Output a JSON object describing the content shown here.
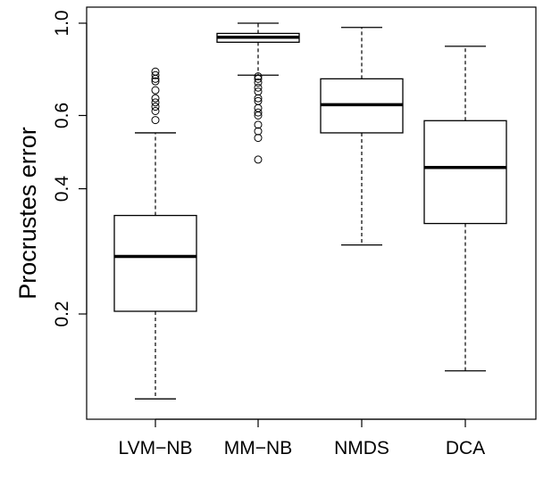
{
  "chart_data": {
    "type": "boxplot",
    "title": "",
    "xlabel": "",
    "ylabel": "Procrustes error",
    "y_scale": "log",
    "ylim": [
      0.12,
      1.05
    ],
    "yticks": [
      {
        "value": 0.2,
        "label": "0.2"
      },
      {
        "value": 0.4,
        "label": "0.4"
      },
      {
        "value": 0.6,
        "label": "0.6"
      },
      {
        "value": 1.0,
        "label": "1.0"
      }
    ],
    "grid": false,
    "categories": [
      "LVM−NB",
      "MM−NB",
      "NMDS",
      "DCA"
    ],
    "boxes": [
      {
        "name": "LVM−NB",
        "whisker_low": 0.125,
        "q1": 0.203,
        "median": 0.275,
        "q3": 0.345,
        "whisker_high": 0.545,
        "outliers": [
          0.585,
          0.615,
          0.63,
          0.645,
          0.66,
          0.69,
          0.725,
          0.735,
          0.75,
          0.765
        ]
      },
      {
        "name": "MM−NB",
        "whisker_low": 0.75,
        "q1": 0.9,
        "median": 0.925,
        "q3": 0.945,
        "whisker_high": 1.0,
        "outliers": [
          0.47,
          0.53,
          0.55,
          0.57,
          0.6,
          0.61,
          0.625,
          0.65,
          0.66,
          0.685,
          0.7,
          0.72,
          0.735,
          0.745
        ]
      },
      {
        "name": "NMDS",
        "whisker_low": 0.293,
        "q1": 0.545,
        "median": 0.637,
        "q3": 0.735,
        "whisker_high": 0.977
      },
      {
        "name": "DCA",
        "whisker_low": 0.146,
        "q1": 0.33,
        "median": 0.45,
        "q3": 0.583,
        "whisker_high": 0.88
      }
    ]
  }
}
